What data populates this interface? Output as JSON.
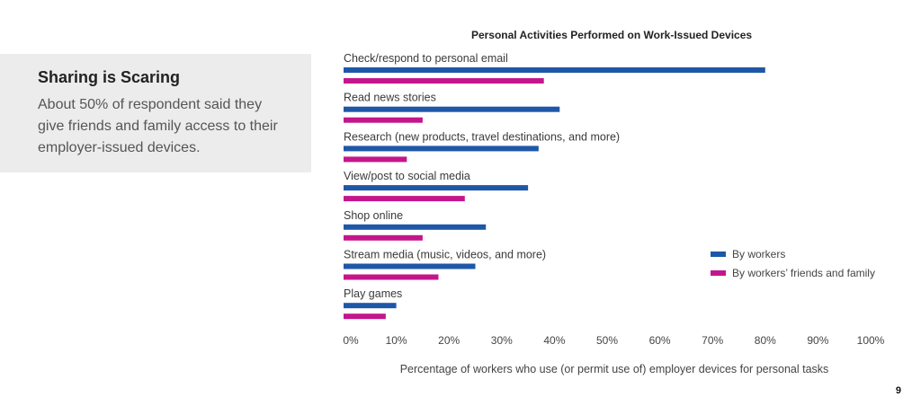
{
  "sidebar": {
    "title": "Sharing is Scaring",
    "body": "About 50% of respondent said they give friends and family access to their employer-issued devices."
  },
  "page_number": "9",
  "colors": {
    "workers": "#1f57a8",
    "friends": "#c4168c",
    "text": "#333333",
    "panel": "#ebeceb"
  },
  "chart_data": {
    "type": "bar",
    "orientation": "horizontal",
    "title": "Personal Activities Performed on Work-Issued Devices",
    "xlabel": "Percentage of workers who use (or permit use of) employer devices for personal tasks",
    "ylabel": "",
    "xlim": [
      0,
      100
    ],
    "ticks": [
      "0%",
      "10%",
      "20%",
      "30%",
      "40%",
      "50%",
      "60%",
      "70%",
      "80%",
      "90%",
      "100%"
    ],
    "legend_position": "right",
    "categories": [
      "Check/respond to personal email",
      "Read news stories",
      "Research (new products, travel destinations, and more)",
      "View/post to social media",
      "Shop online",
      "Stream media (music, videos, and more)",
      "Play games"
    ],
    "series": [
      {
        "name": "By workers",
        "color": "#1f57a8",
        "values": [
          80,
          41,
          37,
          35,
          27,
          25,
          10
        ]
      },
      {
        "name": "By workers’ friends and family",
        "color": "#c4168c",
        "values": [
          38,
          15,
          12,
          23,
          15,
          18,
          8
        ]
      }
    ]
  }
}
